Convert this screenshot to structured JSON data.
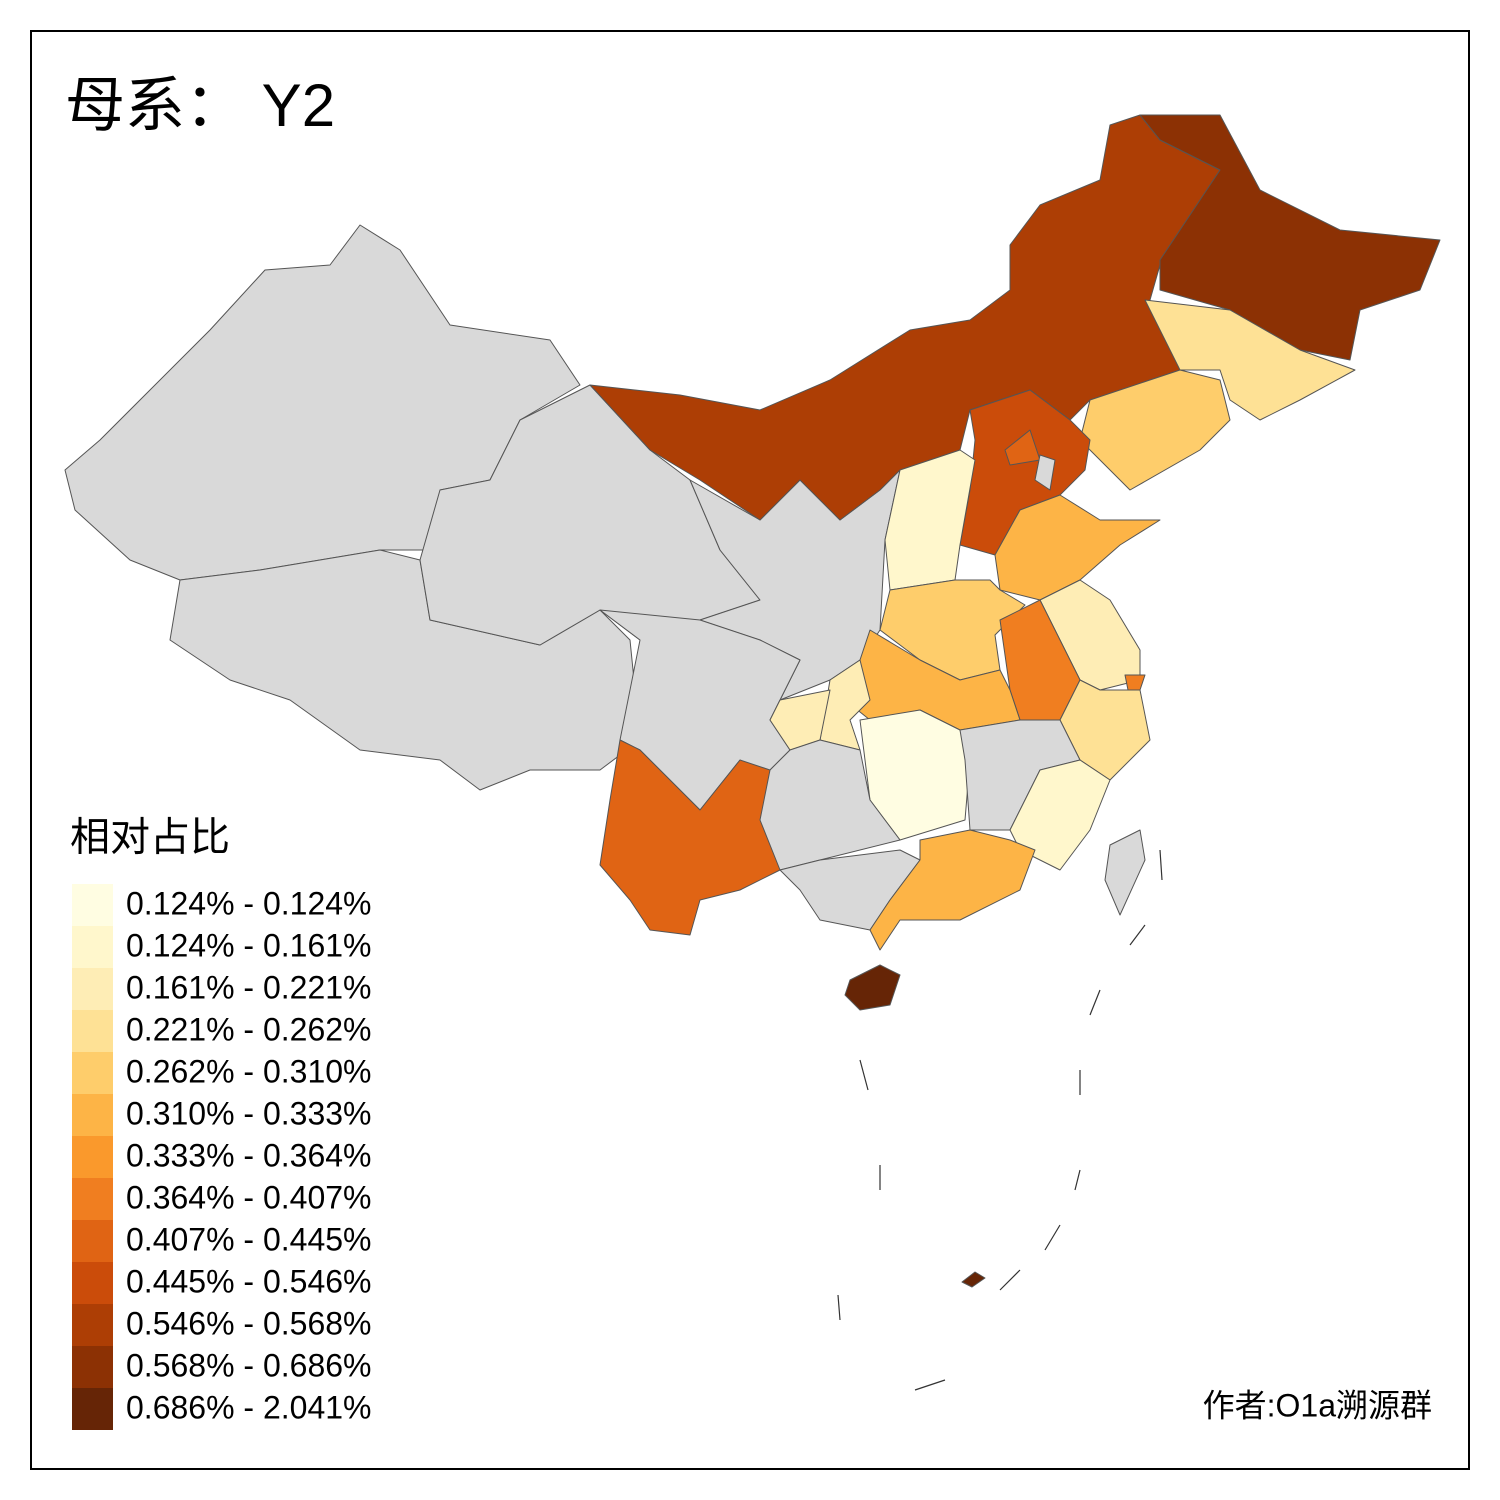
{
  "title": "母系： Y2",
  "legend": {
    "title": "相对占比",
    "items": [
      {
        "label": "0.124% - 0.124%",
        "color": "#fffde2"
      },
      {
        "label": "0.124% - 0.161%",
        "color": "#fff7cc"
      },
      {
        "label": "0.161% - 0.221%",
        "color": "#feedb5"
      },
      {
        "label": "0.221% - 0.262%",
        "color": "#fee195"
      },
      {
        "label": "0.262% - 0.310%",
        "color": "#fecd6b"
      },
      {
        "label": "0.310% - 0.333%",
        "color": "#fdb446"
      },
      {
        "label": "0.333% - 0.364%",
        "color": "#fa992c"
      },
      {
        "label": "0.364% - 0.407%",
        "color": "#f07e20"
      },
      {
        "label": "0.407% - 0.445%",
        "color": "#e06414"
      },
      {
        "label": "0.445% - 0.546%",
        "color": "#cb4c0a"
      },
      {
        "label": "0.546% - 0.568%",
        "color": "#ad3e05"
      },
      {
        "label": "0.568% - 0.686%",
        "color": "#8c3104"
      },
      {
        "label": "0.686% - 2.041%",
        "color": "#662506"
      }
    ]
  },
  "credit": "作者:O1a溯源群",
  "no_data_color": "#d9d9d9"
}
